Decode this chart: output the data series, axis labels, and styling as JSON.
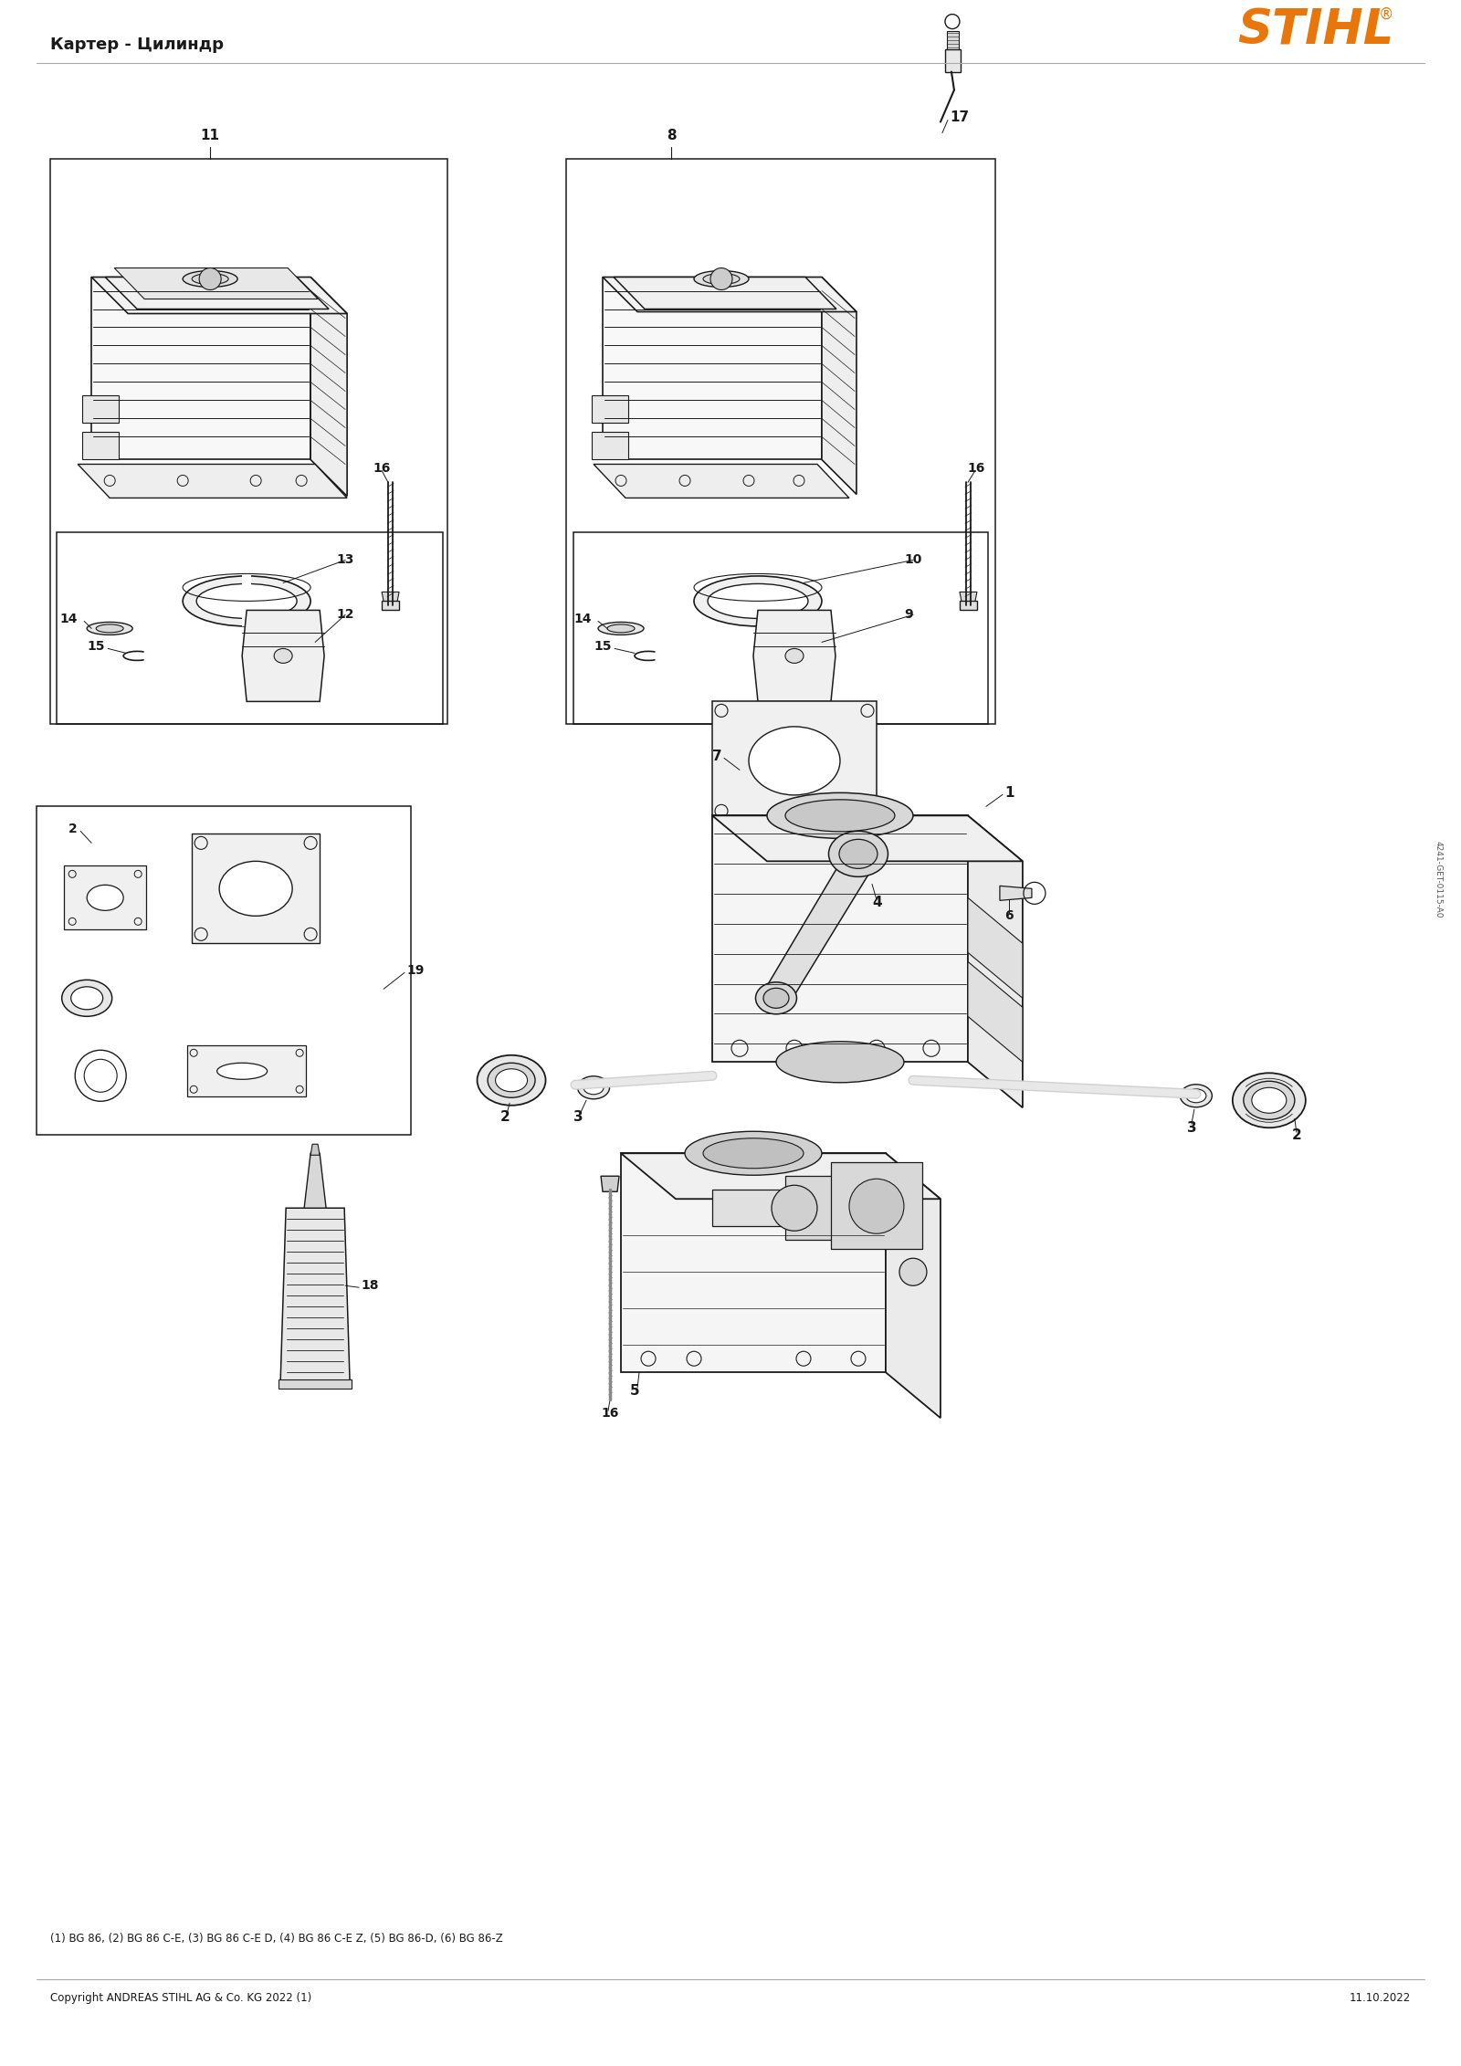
{
  "title": "Картер - Цилиндр",
  "stihl_logo_text": "STIHL",
  "stihl_logo_color": "#E8760A",
  "background_color": "#FFFFFF",
  "footer_left": "Copyright ANDREAS STIHL AG & Co. KG 2022 (1)",
  "footer_right": "11.10.2022",
  "footnote": "(1) BG 86, (2) BG 86 C-E, (3) BG 86 C-E D, (4) BG 86 C-E Z, (5) BG 86-D, (6) BG 86-Z",
  "doc_id": "4241-GET-0115-A0",
  "annotation_fontsize": 10,
  "title_fontsize": 13,
  "footer_fontsize": 8.5
}
